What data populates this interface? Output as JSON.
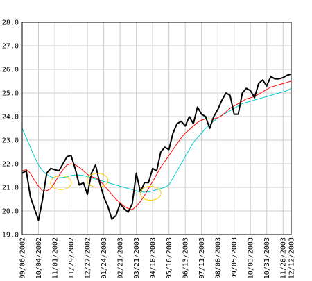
{
  "chart_data": {
    "type": "line",
    "title": "",
    "xlabel": "",
    "ylabel": "",
    "ylim": [
      19.0,
      28.0
    ],
    "grid": true,
    "legend": "none",
    "y_ticks": [
      19.0,
      20.0,
      21.0,
      22.0,
      23.0,
      24.0,
      25.0,
      26.0,
      27.0,
      28.0
    ],
    "y_tick_labels": [
      "19.0",
      "20.0",
      "21.0",
      "22.0",
      "23.0",
      "24.0",
      "25.0",
      "26.0",
      "27.0",
      "28.0"
    ],
    "x_tick_labels": [
      "09/06/2002",
      "10/04/2002",
      "11/01/2002",
      "11/29/2002",
      "12/27/2002",
      "01/24/2003",
      "02/21/2003",
      "03/21/2003",
      "04/18/2003",
      "05/16/2003",
      "06/13/2003",
      "07/11/2003",
      "08/08/2003",
      "09/05/2003",
      "10/03/2003",
      "10/31/2003",
      "11/28/2003",
      "12/12/2003"
    ],
    "x_tick_weeks": [
      0,
      4,
      8,
      12,
      16,
      20,
      24,
      28,
      32,
      36,
      40,
      44,
      48,
      52,
      56,
      60,
      64,
      66
    ],
    "x_range_weeks": [
      0,
      66
    ],
    "colors": {
      "price": "#000000",
      "short_avg": "#ff0000",
      "long_avg": "#00cccc",
      "highlight": "#ffcc00",
      "grid": "#cccccc"
    },
    "series": [
      {
        "key": "price",
        "week": [
          0,
          1,
          2,
          3,
          4,
          5,
          6,
          7,
          8,
          9,
          10,
          11,
          12,
          13,
          14,
          15,
          16,
          17,
          18,
          19,
          20,
          21,
          22,
          23,
          24,
          25,
          26,
          27,
          28,
          29,
          30,
          31,
          32,
          33,
          34,
          35,
          36,
          37,
          38,
          39,
          40,
          41,
          42,
          43,
          44,
          45,
          46,
          47,
          48,
          49,
          50,
          51,
          52,
          53,
          54,
          55,
          56,
          57,
          58,
          59,
          60,
          61,
          62,
          63,
          64,
          65,
          66
        ],
        "values": [
          21.6,
          21.7,
          20.6,
          20.1,
          19.6,
          20.5,
          21.6,
          21.8,
          21.75,
          21.7,
          22.0,
          22.3,
          22.35,
          21.8,
          21.1,
          21.2,
          20.7,
          21.6,
          21.95,
          21.2,
          20.6,
          20.2,
          19.65,
          19.8,
          20.3,
          20.1,
          19.95,
          20.3,
          21.6,
          20.8,
          21.2,
          21.2,
          21.8,
          21.7,
          22.5,
          22.7,
          22.6,
          23.3,
          23.7,
          23.8,
          23.6,
          24.0,
          23.7,
          24.4,
          24.1,
          24.0,
          23.5,
          24.0,
          24.3,
          24.7,
          25.0,
          24.9,
          24.1,
          24.1,
          25.0,
          25.2,
          25.1,
          24.8,
          25.4,
          25.55,
          25.3,
          25.7,
          25.6,
          25.6,
          25.65,
          25.75,
          25.8
        ]
      },
      {
        "key": "short_avg",
        "week": [
          0,
          1,
          2,
          3,
          4,
          5,
          6,
          7,
          8,
          9,
          10,
          11,
          12,
          13,
          14,
          15,
          16,
          17,
          18,
          19,
          20,
          21,
          22,
          23,
          24,
          25,
          26,
          27,
          28,
          29,
          30,
          31,
          32,
          33,
          34,
          35,
          36,
          37,
          38,
          39,
          40,
          41,
          42,
          43,
          44,
          45,
          46,
          47,
          48,
          49,
          50,
          51,
          52,
          53,
          54,
          55,
          56,
          57,
          58,
          59,
          60,
          61,
          62,
          63,
          64,
          65,
          66
        ],
        "values": [
          21.7,
          21.75,
          21.6,
          21.3,
          21.05,
          20.85,
          20.85,
          20.95,
          21.2,
          21.5,
          21.75,
          21.95,
          22.0,
          21.95,
          21.85,
          21.7,
          21.55,
          21.45,
          21.4,
          21.3,
          21.1,
          20.9,
          20.7,
          20.5,
          20.35,
          20.2,
          20.1,
          20.05,
          20.2,
          20.4,
          20.65,
          20.95,
          21.25,
          21.55,
          21.85,
          22.1,
          22.35,
          22.6,
          22.85,
          23.1,
          23.3,
          23.45,
          23.6,
          23.75,
          23.85,
          23.9,
          23.9,
          23.9,
          23.95,
          24.05,
          24.2,
          24.35,
          24.45,
          24.55,
          24.65,
          24.75,
          24.8,
          24.85,
          24.95,
          25.05,
          25.15,
          25.25,
          25.3,
          25.35,
          25.4,
          25.45,
          25.5
        ]
      },
      {
        "key": "long_avg",
        "week": [
          0,
          1,
          2,
          3,
          4,
          5,
          6,
          7,
          8,
          9,
          10,
          11,
          12,
          13,
          14,
          15,
          16,
          17,
          18,
          19,
          20,
          21,
          22,
          23,
          24,
          25,
          26,
          27,
          28,
          29,
          30,
          31,
          32,
          33,
          34,
          35,
          36,
          37,
          38,
          39,
          40,
          41,
          42,
          43,
          44,
          45,
          46,
          47,
          48,
          49,
          50,
          51,
          52,
          53,
          54,
          55,
          56,
          57,
          58,
          59,
          60,
          61,
          62,
          63,
          64,
          65,
          66
        ],
        "values": [
          23.5,
          23.1,
          22.7,
          22.3,
          21.95,
          21.7,
          21.55,
          21.45,
          21.4,
          21.4,
          21.42,
          21.45,
          21.5,
          21.52,
          21.52,
          21.5,
          21.45,
          21.4,
          21.35,
          21.3,
          21.25,
          21.2,
          21.15,
          21.1,
          21.05,
          21.0,
          20.95,
          20.9,
          20.85,
          20.8,
          20.8,
          20.8,
          20.85,
          20.9,
          20.95,
          21.0,
          21.1,
          21.4,
          21.7,
          22.0,
          22.3,
          22.6,
          22.9,
          23.1,
          23.3,
          23.5,
          23.65,
          23.8,
          23.95,
          24.05,
          24.15,
          24.25,
          24.35,
          24.45,
          24.55,
          24.6,
          24.65,
          24.7,
          24.75,
          24.8,
          24.85,
          24.9,
          24.95,
          25.0,
          25.05,
          25.1,
          25.2
        ]
      }
    ],
    "highlights": [
      {
        "week": 9.5,
        "value": 21.2
      },
      {
        "week": 18.5,
        "value": 21.3
      },
      {
        "week": 31.5,
        "value": 20.75
      }
    ]
  }
}
